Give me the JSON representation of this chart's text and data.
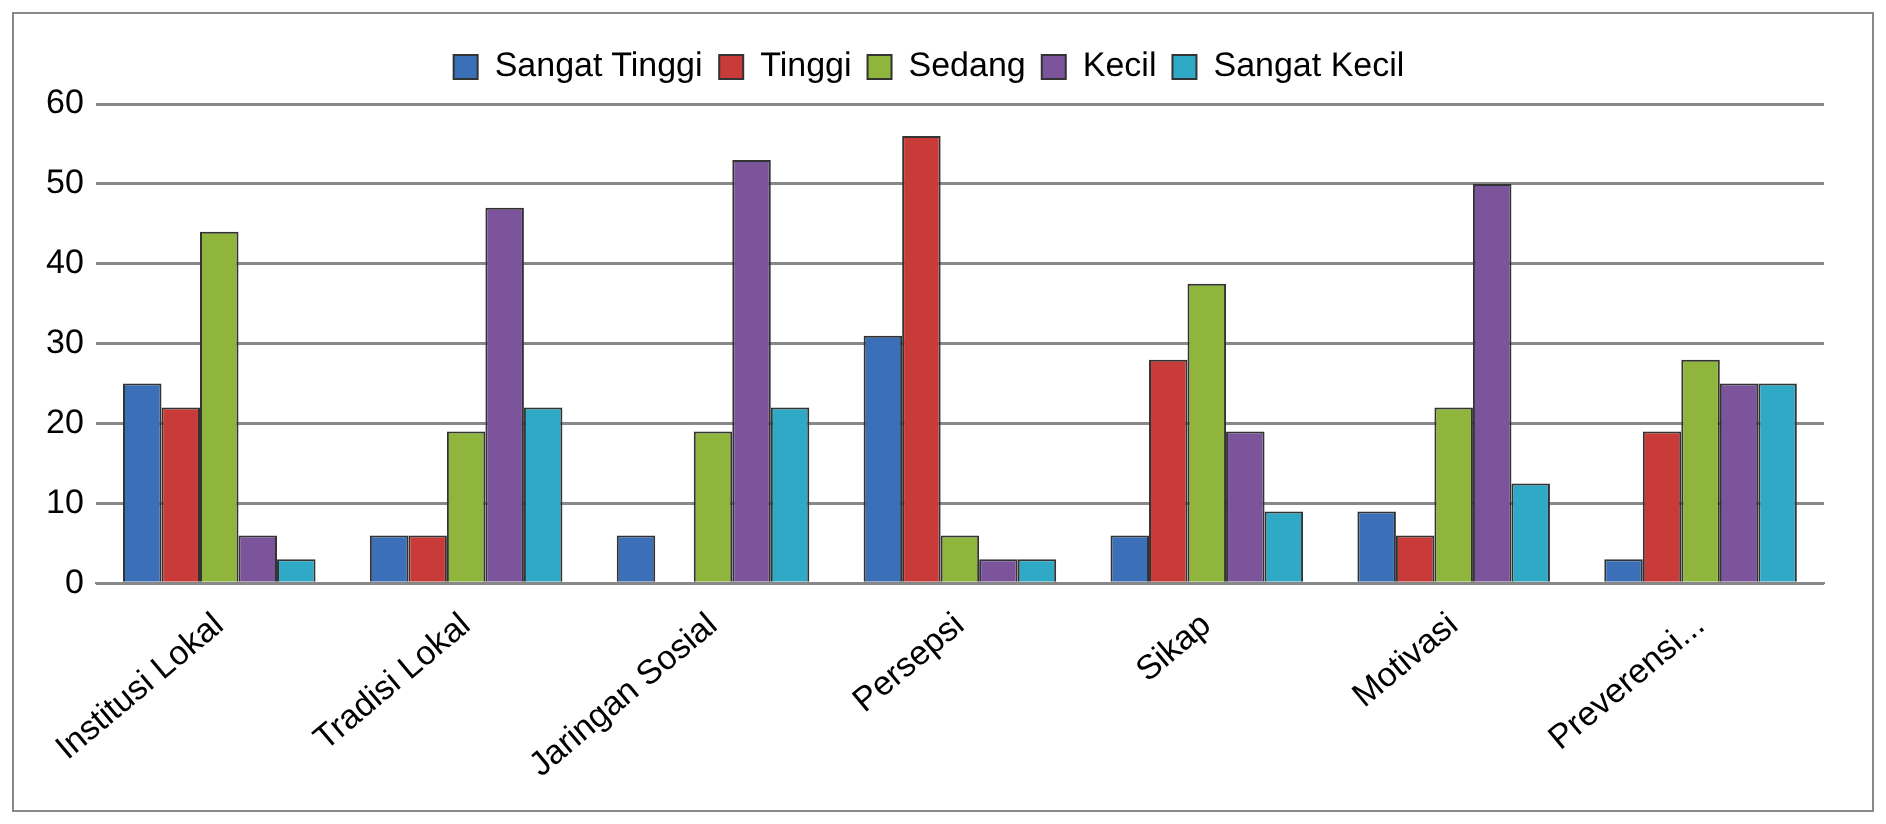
{
  "chart_data": {
    "type": "bar",
    "categories": [
      "Institusi Lokal",
      "Tradisi Lokal",
      "Jaringan Sosial",
      "Persepsi",
      "Sikap",
      "Motivasi",
      "Preverensi..."
    ],
    "series": [
      {
        "name": "Sangat Tinggi",
        "color": "#3b70b9",
        "values": [
          25,
          6,
          6,
          31,
          6,
          9,
          3
        ]
      },
      {
        "name": "Tinggi",
        "color": "#c93b38",
        "values": [
          22,
          6,
          0,
          56,
          28,
          6,
          19
        ]
      },
      {
        "name": "Sedang",
        "color": "#8fb53c",
        "values": [
          44,
          19,
          19,
          6,
          37.5,
          22,
          28
        ]
      },
      {
        "name": "Kecil",
        "color": "#7b549c",
        "values": [
          6,
          47,
          53,
          3,
          19,
          50,
          25
        ]
      },
      {
        "name": "Sangat Kecil",
        "color": "#30a9c6",
        "values": [
          3,
          22,
          22,
          3,
          9,
          12.5,
          25
        ]
      }
    ],
    "ylim": [
      0,
      60
    ],
    "yticks": [
      0,
      10,
      20,
      30,
      40,
      50,
      60
    ],
    "grid": "y",
    "legend": "top"
  }
}
